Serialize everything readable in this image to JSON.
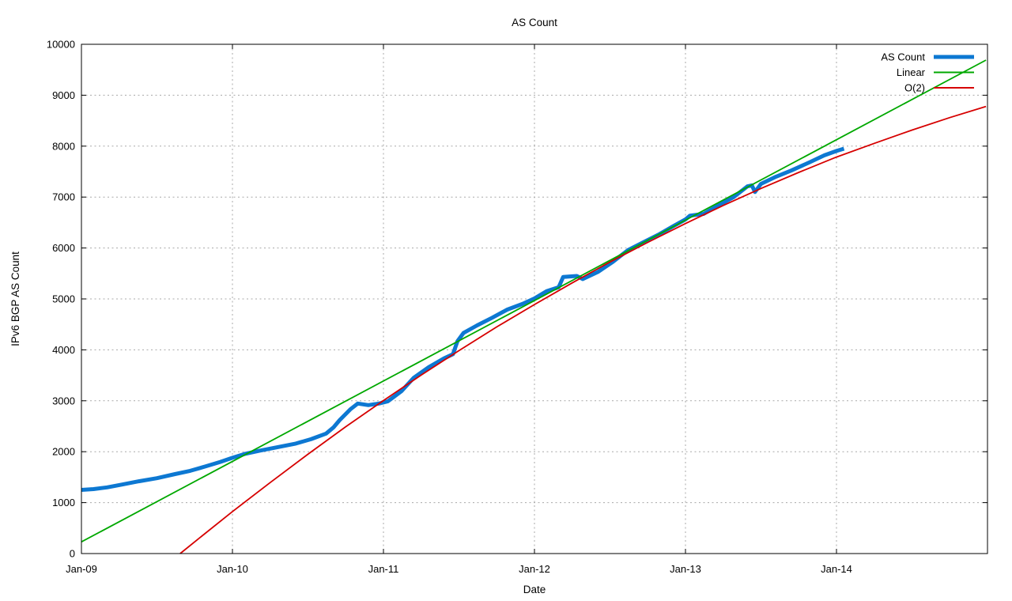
{
  "colors": {
    "background": "#ffffff",
    "axis": "#000000",
    "grid": "#a8a8a8",
    "text": "#000000"
  },
  "chart_data": {
    "type": "line",
    "title": "AS Count",
    "xlabel": "Date",
    "ylabel": "IPv6 BGP AS Count",
    "grid": true,
    "legend_position": "top-right-inside",
    "x_axis": {
      "tick_labels": [
        "Jan-09",
        "Jan-10",
        "Jan-11",
        "Jan-12",
        "Jan-13",
        "Jan-14"
      ],
      "tick_positions_years": [
        0,
        1,
        2,
        3,
        4,
        5
      ],
      "range_years": [
        0,
        6
      ]
    },
    "y_axis": {
      "ticks": [
        0,
        1000,
        2000,
        3000,
        4000,
        5000,
        6000,
        7000,
        8000,
        9000,
        10000
      ],
      "range": [
        0,
        10000
      ]
    },
    "series": [
      {
        "name": "AS Count",
        "color": "#0d78d2",
        "width": 5,
        "points": [
          [
            0,
            1250
          ],
          [
            0.08,
            1265
          ],
          [
            0.17,
            1300
          ],
          [
            0.27,
            1355
          ],
          [
            0.38,
            1420
          ],
          [
            0.5,
            1480
          ],
          [
            0.62,
            1560
          ],
          [
            0.72,
            1625
          ],
          [
            0.82,
            1710
          ],
          [
            0.92,
            1800
          ],
          [
            1.0,
            1880
          ],
          [
            1.08,
            1955
          ],
          [
            1.18,
            2020
          ],
          [
            1.3,
            2090
          ],
          [
            1.42,
            2160
          ],
          [
            1.52,
            2245
          ],
          [
            1.62,
            2355
          ],
          [
            1.67,
            2480
          ],
          [
            1.71,
            2620
          ],
          [
            1.78,
            2830
          ],
          [
            1.83,
            2945
          ],
          [
            1.9,
            2915
          ],
          [
            1.97,
            2945
          ],
          [
            2.03,
            2990
          ],
          [
            2.12,
            3190
          ],
          [
            2.2,
            3450
          ],
          [
            2.3,
            3660
          ],
          [
            2.4,
            3830
          ],
          [
            2.46,
            3915
          ],
          [
            2.49,
            4170
          ],
          [
            2.53,
            4330
          ],
          [
            2.62,
            4480
          ],
          [
            2.72,
            4630
          ],
          [
            2.82,
            4790
          ],
          [
            2.92,
            4900
          ],
          [
            3.0,
            5010
          ],
          [
            3.08,
            5150
          ],
          [
            3.16,
            5230
          ],
          [
            3.19,
            5430
          ],
          [
            3.28,
            5450
          ],
          [
            3.32,
            5390
          ],
          [
            3.42,
            5530
          ],
          [
            3.52,
            5730
          ],
          [
            3.62,
            5960
          ],
          [
            3.72,
            6110
          ],
          [
            3.82,
            6260
          ],
          [
            3.92,
            6430
          ],
          [
            4.0,
            6560
          ],
          [
            4.03,
            6635
          ],
          [
            4.12,
            6670
          ],
          [
            4.22,
            6840
          ],
          [
            4.32,
            7000
          ],
          [
            4.41,
            7210
          ],
          [
            4.44,
            7230
          ],
          [
            4.46,
            7100
          ],
          [
            4.5,
            7260
          ],
          [
            4.6,
            7400
          ],
          [
            4.7,
            7520
          ],
          [
            4.82,
            7680
          ],
          [
            4.92,
            7820
          ],
          [
            5.0,
            7905
          ],
          [
            5.05,
            7950
          ]
        ]
      },
      {
        "name": "Linear",
        "color": "#00a800",
        "width": 1.8,
        "points": [
          [
            0,
            230
          ],
          [
            5.99,
            9690
          ]
        ]
      },
      {
        "name": "O(2)",
        "color": "#d60000",
        "width": 1.8,
        "points": [
          [
            0.654,
            0
          ],
          [
            0.8,
            350
          ],
          [
            1.0,
            825
          ],
          [
            1.25,
            1395
          ],
          [
            1.5,
            1950
          ],
          [
            1.75,
            2490
          ],
          [
            2.0,
            3005
          ],
          [
            2.25,
            3505
          ],
          [
            2.5,
            3985
          ],
          [
            2.75,
            4450
          ],
          [
            3.0,
            4890
          ],
          [
            3.25,
            5315
          ],
          [
            3.5,
            5725
          ],
          [
            3.75,
            6110
          ],
          [
            4.0,
            6480
          ],
          [
            4.25,
            6835
          ],
          [
            4.5,
            7170
          ],
          [
            4.75,
            7485
          ],
          [
            5.0,
            7785
          ],
          [
            5.25,
            8055
          ],
          [
            5.5,
            8315
          ],
          [
            5.75,
            8560
          ],
          [
            5.99,
            8780
          ]
        ]
      }
    ]
  }
}
